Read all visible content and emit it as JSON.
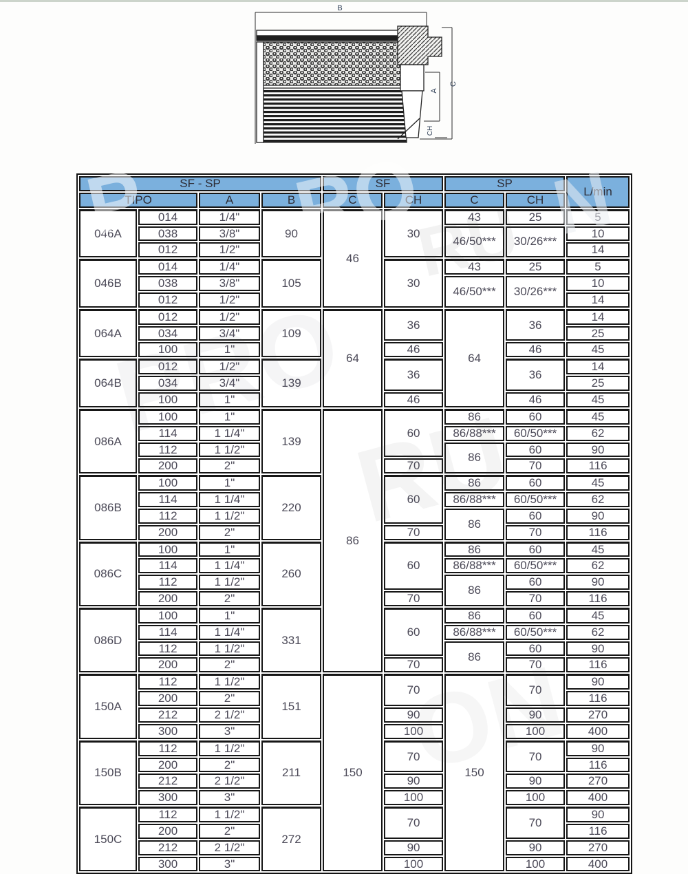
{
  "page": {
    "background": "#fdfdfc",
    "top_strip_color": "#ccd4cb",
    "header_blue": "#7bb0dd",
    "border_color": "#161616",
    "text_color": "#4c4a58"
  },
  "drawing": {
    "dim_labels": {
      "b": "B",
      "c": "C",
      "a": "A",
      "ch": "CH"
    }
  },
  "watermark": {
    "parts": [
      "P",
      "RO",
      "N",
      "RU",
      "PRO",
      "RU",
      "ON"
    ]
  },
  "table": {
    "header": {
      "sf_sp": "SF - SP",
      "sf": "SF",
      "sp": "SP",
      "lmin": "L/min",
      "tipo": "TIPO",
      "a": "A",
      "b": "B",
      "c_sf": "C",
      "ch_sf": "CH",
      "c_sp": "C",
      "ch_sp": "CH"
    },
    "columns": [
      "tipo",
      "code",
      "a",
      "b",
      "sfc",
      "sfch",
      "spc",
      "spch",
      "lmin"
    ],
    "rows": [
      {
        "tipo": {
          "v": "046A",
          "s": 3
        },
        "code": "014",
        "a": "1/4\"",
        "b": {
          "v": "90",
          "s": 3
        },
        "sfc": {
          "v": "46",
          "s": 6
        },
        "sfch": {
          "v": "30",
          "s": 3
        },
        "spc": "43",
        "spch": "25",
        "lmin": "5"
      },
      {
        "code": "038",
        "a": "3/8\"",
        "spc": {
          "v": "46/50***",
          "s": 2
        },
        "spch": {
          "v": "30/26***",
          "s": 2
        },
        "lmin": "10"
      },
      {
        "code": "012",
        "a": "1/2\"",
        "lmin": "14"
      },
      {
        "tipo": {
          "v": "046B",
          "s": 3
        },
        "code": "014",
        "a": "1/4\"",
        "b": {
          "v": "105",
          "s": 3
        },
        "sfch": {
          "v": "30",
          "s": 3
        },
        "spc": "43",
        "spch": "25",
        "lmin": "5"
      },
      {
        "code": "038",
        "a": "3/8\"",
        "spc": {
          "v": "46/50***",
          "s": 2
        },
        "spch": {
          "v": "30/26***",
          "s": 2
        },
        "lmin": "10"
      },
      {
        "code": "012",
        "a": "1/2\"",
        "lmin": "14"
      },
      {
        "tipo": {
          "v": "064A",
          "s": 3
        },
        "code": "012",
        "a": "1/2\"",
        "b": {
          "v": "109",
          "s": 3
        },
        "sfc": {
          "v": "64",
          "s": 6
        },
        "sfch": {
          "v": "36",
          "s": 2
        },
        "spc": {
          "v": "64",
          "s": 6
        },
        "spch": {
          "v": "36",
          "s": 2
        },
        "lmin": "14"
      },
      {
        "code": "034",
        "a": "3/4\"",
        "lmin": "25"
      },
      {
        "code": "100",
        "a": "1\"",
        "sfch": "46",
        "spch": "46",
        "lmin": "45"
      },
      {
        "tipo": {
          "v": "064B",
          "s": 3
        },
        "code": "012",
        "a": "1/2\"",
        "b": {
          "v": "139",
          "s": 3
        },
        "sfch": {
          "v": "36",
          "s": 2
        },
        "spch": {
          "v": "36",
          "s": 2
        },
        "lmin": "14"
      },
      {
        "code": "034",
        "a": "3/4\"",
        "lmin": "25"
      },
      {
        "code": "100",
        "a": "1\"",
        "sfch": "46",
        "spch": "46",
        "lmin": "45"
      },
      {
        "tipo": {
          "v": "086A",
          "s": 4
        },
        "code": "100",
        "a": "1\"",
        "b": {
          "v": "139",
          "s": 4
        },
        "sfc": {
          "v": "86",
          "s": 16
        },
        "sfch": {
          "v": "60",
          "s": 3
        },
        "spc": "86",
        "spch": "60",
        "lmin": "45"
      },
      {
        "code": "114",
        "a": "1 1/4\"",
        "spc": "86/88***",
        "spch": "60/50***",
        "lmin": "62"
      },
      {
        "code": "112",
        "a": "1 1/2\"",
        "spc": {
          "v": "86",
          "s": 2
        },
        "spch": "60",
        "lmin": "90"
      },
      {
        "code": "200",
        "a": "2\"",
        "sfch": "70",
        "spch": "70",
        "lmin": "116"
      },
      {
        "tipo": {
          "v": "086B",
          "s": 4
        },
        "code": "100",
        "a": "1\"",
        "b": {
          "v": "220",
          "s": 4
        },
        "sfch": {
          "v": "60",
          "s": 3
        },
        "spc": "86",
        "spch": "60",
        "lmin": "45"
      },
      {
        "code": "114",
        "a": "1 1/4\"",
        "spc": "86/88***",
        "spch": "60/50***",
        "lmin": "62"
      },
      {
        "code": "112",
        "a": "1 1/2\"",
        "spc": {
          "v": "86",
          "s": 2
        },
        "spch": "60",
        "lmin": "90"
      },
      {
        "code": "200",
        "a": "2\"",
        "sfch": "70",
        "spch": "70",
        "lmin": "116"
      },
      {
        "tipo": {
          "v": "086C",
          "s": 4
        },
        "code": "100",
        "a": "1\"",
        "b": {
          "v": "260",
          "s": 4
        },
        "sfch": {
          "v": "60",
          "s": 3
        },
        "spc": "86",
        "spch": "60",
        "lmin": "45"
      },
      {
        "code": "114",
        "a": "1 1/4\"",
        "spc": "86/88***",
        "spch": "60/50***",
        "lmin": "62"
      },
      {
        "code": "112",
        "a": "1 1/2\"",
        "spc": {
          "v": "86",
          "s": 2
        },
        "spch": "60",
        "lmin": "90"
      },
      {
        "code": "200",
        "a": "2\"",
        "sfch": "70",
        "spch": "70",
        "lmin": "116"
      },
      {
        "tipo": {
          "v": "086D",
          "s": 4
        },
        "code": "100",
        "a": "1\"",
        "b": {
          "v": "331",
          "s": 4
        },
        "sfch": {
          "v": "60",
          "s": 3
        },
        "spc": "86",
        "spch": "60",
        "lmin": "45"
      },
      {
        "code": "114",
        "a": "1 1/4\"",
        "spc": "86/88***",
        "spch": "60/50***",
        "lmin": "62"
      },
      {
        "code": "112",
        "a": "1 1/2\"",
        "spc": {
          "v": "86",
          "s": 2
        },
        "spch": "60",
        "lmin": "90"
      },
      {
        "code": "200",
        "a": "2\"",
        "sfch": "70",
        "spch": "70",
        "lmin": "116"
      },
      {
        "tipo": {
          "v": "150A",
          "s": 4
        },
        "code": "112",
        "a": "1 1/2\"",
        "b": {
          "v": "151",
          "s": 4
        },
        "sfc": {
          "v": "150",
          "s": 12
        },
        "sfch": {
          "v": "70",
          "s": 2
        },
        "spc": {
          "v": "150",
          "s": 12
        },
        "spch": {
          "v": "70",
          "s": 2
        },
        "lmin": "90"
      },
      {
        "code": "200",
        "a": "2\"",
        "lmin": "116"
      },
      {
        "code": "212",
        "a": "2 1/2\"",
        "sfch": "90",
        "spch": "90",
        "lmin": "270"
      },
      {
        "code": "300",
        "a": "3\"",
        "sfch": "100",
        "spch": "100",
        "lmin": "400"
      },
      {
        "tipo": {
          "v": "150B",
          "s": 4
        },
        "code": "112",
        "a": "1 1/2\"",
        "b": {
          "v": "211",
          "s": 4
        },
        "sfch": {
          "v": "70",
          "s": 2
        },
        "spch": {
          "v": "70",
          "s": 2
        },
        "lmin": "90"
      },
      {
        "code": "200",
        "a": "2\"",
        "lmin": "116"
      },
      {
        "code": "212",
        "a": "2 1/2\"",
        "sfch": "90",
        "spch": "90",
        "lmin": "270"
      },
      {
        "code": "300",
        "a": "3\"",
        "sfch": "100",
        "spch": "100",
        "lmin": "400"
      },
      {
        "tipo": {
          "v": "150C",
          "s": 4
        },
        "code": "112",
        "a": "1 1/2\"",
        "b": {
          "v": "272",
          "s": 4
        },
        "sfch": {
          "v": "70",
          "s": 2
        },
        "spch": {
          "v": "70",
          "s": 2
        },
        "lmin": "90"
      },
      {
        "code": "200",
        "a": "2\"",
        "lmin": "116"
      },
      {
        "code": "212",
        "a": "2 1/2\"",
        "sfch": "90",
        "spch": "90",
        "lmin": "270"
      },
      {
        "code": "300",
        "a": "3\"",
        "sfch": "100",
        "spch": "100",
        "lmin": "400"
      }
    ]
  }
}
